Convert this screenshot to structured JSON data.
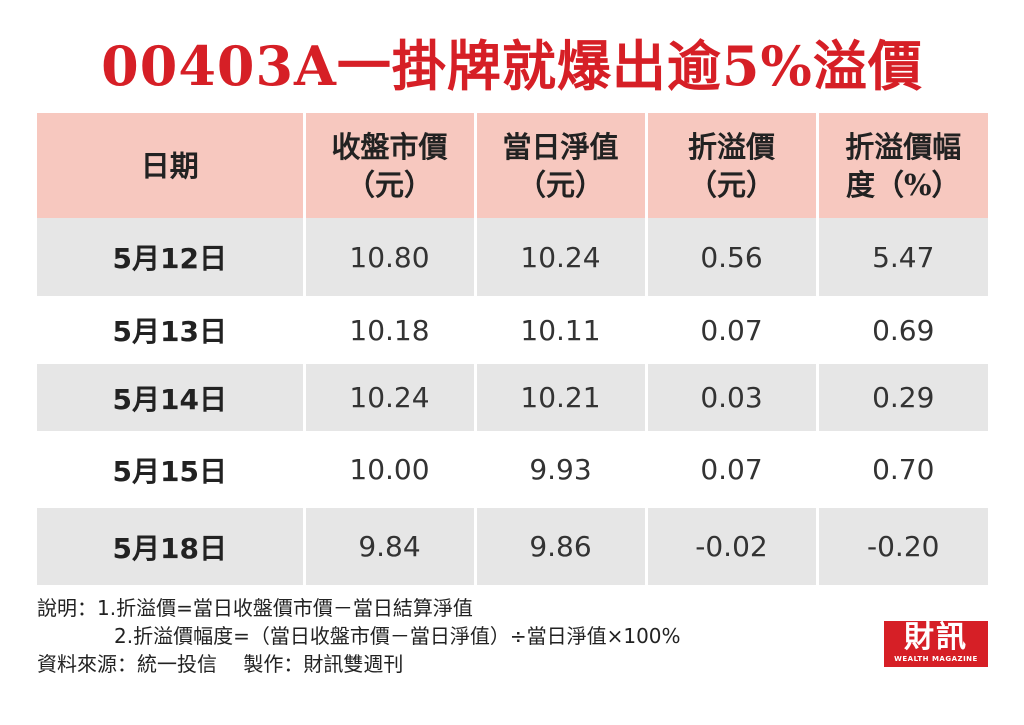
{
  "title": "00403A一掛牌就爆出逾5%溢價",
  "chart_data": {
    "type": "table",
    "columns": [
      "日期",
      "收盤市價（元）",
      "當日淨值（元）",
      "折溢價（元）",
      "折溢價幅度（%）"
    ],
    "header": [
      [
        "日期"
      ],
      [
        "收盤市價",
        "（元）"
      ],
      [
        "當日淨值",
        "（元）"
      ],
      [
        "折溢價",
        "（元）"
      ],
      [
        "折溢價幅",
        "度（%）"
      ]
    ],
    "rows": [
      [
        "5月12日",
        "10.80",
        "10.24",
        "0.56",
        "5.47"
      ],
      [
        "5月13日",
        "10.18",
        "10.11",
        "0.07",
        "0.69"
      ],
      [
        "5月14日",
        "10.24",
        "10.21",
        "0.03",
        "0.29"
      ],
      [
        "5月15日",
        "10.00",
        "9.93",
        "0.07",
        "0.70"
      ],
      [
        "5月18日",
        "9.84",
        "9.86",
        "-0.02",
        "-0.20"
      ]
    ]
  },
  "notes": {
    "line1": "說明：1.折溢價=當日收盤價市價－當日結算淨值",
    "line2": "2.折溢價幅度=（當日收盤市價－當日淨值）÷當日淨值×100%",
    "line3": "資料來源：統一投信　 製作：財訊雙週刊"
  },
  "logo": {
    "main": "財訊",
    "sub": "WEALTH MAGAZINE"
  },
  "colors": {
    "title_red": "#d61f26",
    "header_bg": "#f7c8bf",
    "row_shade": "#e6e6e6"
  }
}
